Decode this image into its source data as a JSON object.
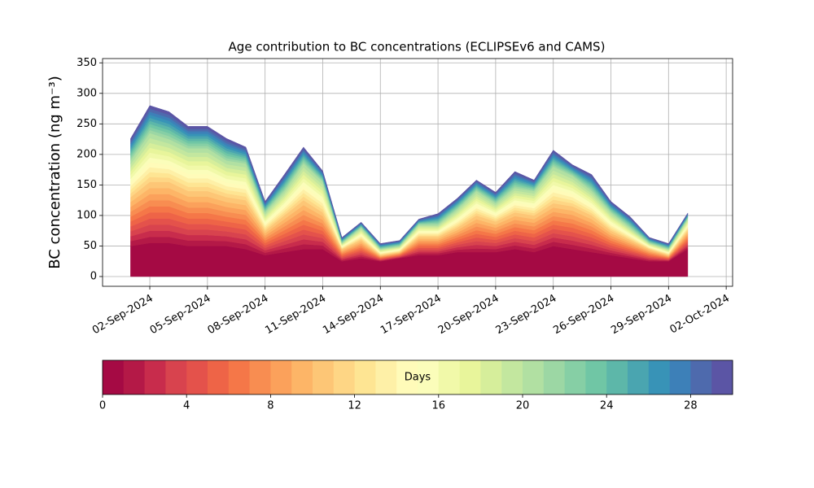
{
  "chart_data": {
    "type": "stacked_area",
    "title": "Age contribution to BC concentrations (ECLIPSEv6 and CAMS)",
    "y_label": "BC concentration (ng m⁻³)",
    "x": [
      "2024-09-01",
      "2024-09-02",
      "2024-09-03",
      "2024-09-04",
      "2024-09-05",
      "2024-09-06",
      "2024-09-07",
      "2024-09-08",
      "2024-09-09",
      "2024-09-10",
      "2024-09-11",
      "2024-09-12",
      "2024-09-13",
      "2024-09-14",
      "2024-09-15",
      "2024-09-16",
      "2024-09-17",
      "2024-09-18",
      "2024-09-19",
      "2024-09-20",
      "2024-09-21",
      "2024-09-22",
      "2024-09-23",
      "2024-09-24",
      "2024-09-25",
      "2024-09-26",
      "2024-09-27",
      "2024-09-28",
      "2024-09-29",
      "2024-09-30"
    ],
    "xlim": [
      "2024-08-30T13:00:00Z",
      "2024-10-02T08:00:00Z"
    ],
    "xticks": [
      {
        "value": "2024-09-02",
        "label": "02-Sep-2024"
      },
      {
        "value": "2024-09-05",
        "label": "05-Sep-2024"
      },
      {
        "value": "2024-09-08",
        "label": "08-Sep-2024"
      },
      {
        "value": "2024-09-11",
        "label": "11-Sep-2024"
      },
      {
        "value": "2024-09-14",
        "label": "14-Sep-2024"
      },
      {
        "value": "2024-09-17",
        "label": "17-Sep-2024"
      },
      {
        "value": "2024-09-20",
        "label": "20-Sep-2024"
      },
      {
        "value": "2024-09-23",
        "label": "23-Sep-2024"
      },
      {
        "value": "2024-09-26",
        "label": "26-Sep-2024"
      },
      {
        "value": "2024-09-29",
        "label": "29-Sep-2024"
      },
      {
        "value": "2024-10-02",
        "label": "02-Oct-2024"
      }
    ],
    "ylim": [
      -16,
      357
    ],
    "yticks": [
      0,
      50,
      100,
      150,
      200,
      250,
      300,
      350
    ],
    "grid": true,
    "series": [
      {
        "color": "#a50a44",
        "values": [
          50,
          55,
          55,
          50,
          50,
          50,
          45,
          35,
          40,
          45,
          45,
          25,
          30,
          25,
          30,
          35,
          35,
          40,
          40,
          40,
          45,
          40,
          50,
          45,
          40,
          35,
          30,
          25,
          25,
          45
        ]
      },
      {
        "color": "#b41947",
        "values": [
          8,
          10,
          10,
          9,
          9,
          8,
          8,
          4,
          6,
          8,
          6,
          2,
          3,
          1,
          1,
          3,
          3,
          4,
          6,
          5,
          6,
          6,
          7,
          7,
          6,
          4,
          3,
          2,
          1,
          3
        ]
      },
      {
        "color": "#c82c4c",
        "values": [
          8,
          10,
          10,
          9,
          9,
          8,
          8,
          4,
          6,
          8,
          6,
          2,
          3,
          1,
          1,
          3,
          3,
          4,
          6,
          5,
          6,
          6,
          7,
          7,
          6,
          4,
          3,
          2,
          1,
          3
        ]
      },
      {
        "color": "#d8434e",
        "values": [
          8,
          10,
          10,
          9,
          9,
          8,
          8,
          4,
          6,
          8,
          6,
          2,
          3,
          1,
          1,
          3,
          3,
          4,
          6,
          5,
          6,
          6,
          7,
          7,
          6,
          4,
          3,
          2,
          1,
          3
        ]
      },
      {
        "color": "#e4524b",
        "values": [
          8,
          10,
          10,
          9,
          9,
          8,
          8,
          4,
          6,
          8,
          6,
          2,
          3,
          1,
          1,
          3,
          3,
          4,
          6,
          5,
          6,
          6,
          7,
          7,
          6,
          4,
          3,
          2,
          1,
          3
        ]
      },
      {
        "color": "#ee6447",
        "values": [
          8,
          10,
          10,
          9,
          9,
          8,
          8,
          4,
          6,
          8,
          6,
          2,
          3,
          1,
          1,
          3,
          3,
          4,
          6,
          5,
          6,
          6,
          7,
          7,
          6,
          4,
          3,
          2,
          1,
          3
        ]
      },
      {
        "color": "#f57748",
        "values": [
          8,
          10,
          10,
          9,
          9,
          8,
          8,
          4,
          6,
          8,
          6,
          2,
          3,
          1,
          1,
          3,
          3,
          4,
          6,
          5,
          6,
          6,
          7,
          7,
          6,
          4,
          3,
          2,
          1,
          3
        ]
      },
      {
        "color": "#f88d51",
        "values": [
          8,
          10,
          10,
          9,
          9,
          8,
          8,
          4,
          6,
          8,
          6,
          2,
          3,
          1,
          1,
          3,
          3,
          4,
          6,
          5,
          6,
          6,
          7,
          7,
          6,
          4,
          3,
          2,
          1,
          3
        ]
      },
      {
        "color": "#fba15b",
        "values": [
          8,
          10,
          10,
          9,
          9,
          8,
          8,
          4,
          6,
          8,
          6,
          2,
          3,
          1,
          1,
          3,
          3,
          4,
          6,
          5,
          6,
          6,
          7,
          7,
          6,
          4,
          3,
          2,
          1,
          3
        ]
      },
      {
        "color": "#fdb567",
        "values": [
          8,
          10,
          10,
          9,
          9,
          8,
          8,
          4,
          6,
          8,
          6,
          2,
          3,
          1,
          1,
          3,
          3,
          4,
          6,
          5,
          6,
          6,
          7,
          7,
          6,
          4,
          3,
          2,
          1,
          3
        ]
      },
      {
        "color": "#fdc676",
        "values": [
          8,
          10,
          10,
          9,
          9,
          8,
          8,
          4,
          6,
          8,
          6,
          2,
          3,
          1,
          1,
          3,
          3,
          4,
          6,
          5,
          6,
          6,
          7,
          7,
          6,
          4,
          3,
          2,
          1,
          3
        ]
      },
      {
        "color": "#fed685",
        "values": [
          6,
          8,
          7,
          7,
          7,
          6,
          6,
          3,
          4,
          6,
          5,
          1,
          2,
          1,
          1,
          2,
          2,
          3,
          4,
          3,
          4,
          4,
          6,
          5,
          4,
          3,
          2,
          1,
          1,
          2
        ]
      },
      {
        "color": "#fee593",
        "values": [
          6,
          8,
          7,
          7,
          7,
          6,
          6,
          3,
          4,
          6,
          5,
          1,
          2,
          1,
          1,
          2,
          2,
          3,
          4,
          3,
          4,
          4,
          6,
          5,
          4,
          3,
          2,
          1,
          1,
          2
        ]
      },
      {
        "color": "#fef0a7",
        "values": [
          6,
          8,
          7,
          7,
          7,
          6,
          6,
          3,
          4,
          6,
          5,
          1,
          2,
          1,
          1,
          2,
          2,
          3,
          4,
          3,
          4,
          4,
          6,
          5,
          4,
          3,
          2,
          1,
          1,
          2
        ]
      },
      {
        "color": "#fffbb9",
        "values": [
          6,
          8,
          7,
          7,
          7,
          6,
          6,
          3,
          4,
          6,
          5,
          1,
          2,
          1,
          1,
          2,
          2,
          3,
          4,
          3,
          4,
          4,
          6,
          5,
          4,
          3,
          2,
          1,
          1,
          2
        ]
      },
      {
        "color": "#fbfdba",
        "values": [
          6,
          8,
          7,
          7,
          7,
          6,
          6,
          3,
          4,
          6,
          5,
          1,
          2,
          1,
          1,
          2,
          2,
          3,
          4,
          3,
          4,
          4,
          6,
          5,
          4,
          3,
          2,
          1,
          1,
          2
        ]
      },
      {
        "color": "#f1f9a9",
        "values": [
          6,
          8,
          7,
          7,
          7,
          6,
          6,
          3,
          4,
          6,
          5,
          1,
          2,
          1,
          1,
          2,
          2,
          3,
          4,
          3,
          4,
          4,
          6,
          5,
          4,
          3,
          2,
          1,
          1,
          2
        ]
      },
      {
        "color": "#e8f59b",
        "values": [
          6,
          8,
          7,
          7,
          7,
          6,
          6,
          3,
          4,
          6,
          5,
          1,
          2,
          1,
          1,
          2,
          2,
          3,
          4,
          3,
          4,
          4,
          6,
          5,
          4,
          3,
          2,
          1,
          1,
          2
        ]
      },
      {
        "color": "#d6ee9b",
        "values": [
          6,
          8,
          7,
          7,
          7,
          6,
          6,
          3,
          4,
          6,
          5,
          1,
          2,
          1,
          1,
          2,
          2,
          3,
          4,
          3,
          4,
          4,
          6,
          5,
          4,
          3,
          2,
          1,
          1,
          2
        ]
      },
      {
        "color": "#c3e79f",
        "values": [
          6,
          8,
          7,
          7,
          7,
          6,
          6,
          3,
          4,
          6,
          5,
          1,
          2,
          1,
          1,
          2,
          2,
          3,
          4,
          3,
          4,
          4,
          6,
          5,
          4,
          3,
          2,
          1,
          1,
          2
        ]
      },
      {
        "color": "#b1e0a2",
        "values": [
          6,
          8,
          7,
          7,
          7,
          6,
          6,
          3,
          4,
          6,
          5,
          1,
          2,
          1,
          1,
          2,
          2,
          3,
          4,
          3,
          4,
          4,
          6,
          5,
          4,
          3,
          2,
          1,
          1,
          2
        ]
      },
      {
        "color": "#9cd7a4",
        "values": [
          4,
          5,
          5,
          4,
          4,
          4,
          3,
          2,
          3,
          3,
          2,
          1,
          1,
          1,
          1,
          1,
          2,
          2,
          2,
          2,
          3,
          2,
          3,
          2,
          3,
          2,
          2,
          1,
          1,
          1
        ]
      },
      {
        "color": "#86cfa5",
        "values": [
          4,
          5,
          5,
          4,
          4,
          4,
          3,
          2,
          3,
          3,
          2,
          1,
          1,
          1,
          1,
          1,
          2,
          2,
          2,
          2,
          3,
          2,
          3,
          2,
          3,
          2,
          2,
          1,
          1,
          1
        ]
      },
      {
        "color": "#70c6a5",
        "values": [
          4,
          5,
          5,
          4,
          4,
          4,
          3,
          2,
          3,
          3,
          2,
          1,
          1,
          1,
          1,
          1,
          2,
          2,
          2,
          2,
          3,
          2,
          3,
          2,
          3,
          2,
          2,
          1,
          1,
          1
        ]
      },
      {
        "color": "#5db7a9",
        "values": [
          4,
          5,
          5,
          4,
          4,
          4,
          3,
          2,
          3,
          3,
          2,
          1,
          1,
          1,
          1,
          1,
          2,
          2,
          2,
          2,
          3,
          2,
          3,
          2,
          3,
          2,
          2,
          1,
          1,
          1
        ]
      },
      {
        "color": "#4aa5b0",
        "values": [
          4,
          5,
          5,
          4,
          4,
          4,
          3,
          2,
          3,
          3,
          2,
          1,
          1,
          1,
          1,
          1,
          2,
          2,
          2,
          2,
          3,
          2,
          3,
          2,
          3,
          2,
          2,
          1,
          1,
          1
        ]
      },
      {
        "color": "#3893b7",
        "values": [
          4,
          5,
          5,
          4,
          4,
          4,
          3,
          2,
          3,
          3,
          2,
          1,
          1,
          1,
          1,
          1,
          2,
          2,
          2,
          2,
          3,
          2,
          3,
          2,
          3,
          2,
          2,
          1,
          1,
          1
        ]
      },
      {
        "color": "#3d80b8",
        "values": [
          4,
          5,
          5,
          4,
          4,
          4,
          3,
          2,
          3,
          3,
          2,
          1,
          1,
          1,
          1,
          1,
          2,
          2,
          2,
          2,
          3,
          2,
          3,
          2,
          3,
          2,
          2,
          1,
          1,
          1
        ]
      },
      {
        "color": "#4e6aad",
        "values": [
          4,
          5,
          5,
          4,
          4,
          4,
          3,
          2,
          3,
          3,
          2,
          1,
          1,
          1,
          1,
          1,
          2,
          2,
          2,
          2,
          3,
          2,
          3,
          2,
          3,
          2,
          2,
          1,
          1,
          1
        ]
      },
      {
        "color": "#5b55a5",
        "values": [
          4,
          5,
          5,
          4,
          4,
          4,
          3,
          2,
          3,
          3,
          2,
          1,
          1,
          1,
          1,
          1,
          2,
          2,
          2,
          2,
          3,
          2,
          3,
          2,
          3,
          2,
          2,
          1,
          1,
          1
        ]
      }
    ],
    "colorbar": {
      "label": "Days",
      "lim": [
        0,
        30
      ],
      "ticks": [
        0,
        4,
        8,
        12,
        16,
        20,
        24,
        28
      ]
    }
  }
}
